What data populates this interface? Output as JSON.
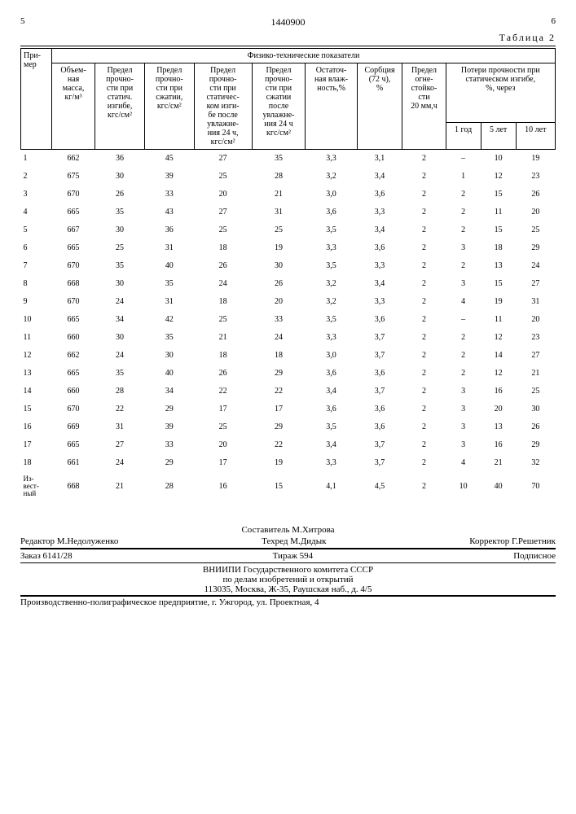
{
  "header": {
    "left_page": "5",
    "patent": "1440900",
    "right_page": "6",
    "table_label": "Таблица 2"
  },
  "table": {
    "col_example": "При-\nмер",
    "super_header": "Физико-технические показатели",
    "columns": {
      "c1": "Объем-\nная\nмасса,\nкг/м³",
      "c2": "Предел\nпрочно-\nсти при\nстатич.\nизгибе,\nкгс/см²",
      "c3": "Предел\nпрочно-\nсти при\nсжатии,\nкгс/см²",
      "c4": "Предел\nпрочно-\nсти при\nстатичес-\nком изги-\nбе после\nувлажне-\nния 24 ч,\nкгс/см²",
      "c5": "Предел\nпрочно-\nсти при\nсжатии\nпосле\nувлажне-\nния 24 ч\nкгс/см²",
      "c6": "Остаточ-\nная влаж-\nность,%",
      "c7": "Сорбция\n(72 ч),\n%",
      "c8": "Предел\nогне-\nстойко-\nсти\n20 мм,ч",
      "c9_group": "Потери прочности при\nстатическом изгибе,\n%, через",
      "c9a": "1 год",
      "c9b": "5 лет",
      "c9c": "10 лет"
    },
    "rows": [
      [
        "1",
        "662",
        "36",
        "45",
        "27",
        "35",
        "3,3",
        "3,1",
        "2",
        "–",
        "10",
        "19"
      ],
      [
        "2",
        "675",
        "30",
        "39",
        "25",
        "28",
        "3,2",
        "3,4",
        "2",
        "1",
        "12",
        "23"
      ],
      [
        "3",
        "670",
        "26",
        "33",
        "20",
        "21",
        "3,0",
        "3,6",
        "2",
        "2",
        "15",
        "26"
      ],
      [
        "4",
        "665",
        "35",
        "43",
        "27",
        "31",
        "3,6",
        "3,3",
        "2",
        "2",
        "11",
        "20"
      ],
      [
        "5",
        "667",
        "30",
        "36",
        "25",
        "25",
        "3,5",
        "3,4",
        "2",
        "2",
        "15",
        "25"
      ],
      [
        "6",
        "665",
        "25",
        "31",
        "18",
        "19",
        "3,3",
        "3,6",
        "2",
        "3",
        "18",
        "29"
      ],
      [
        "7",
        "670",
        "35",
        "40",
        "26",
        "30",
        "3,5",
        "3,3",
        "2",
        "2",
        "13",
        "24"
      ],
      [
        "8",
        "668",
        "30",
        "35",
        "24",
        "26",
        "3,2",
        "3,4",
        "2",
        "3",
        "15",
        "27"
      ],
      [
        "9",
        "670",
        "24",
        "31",
        "18",
        "20",
        "3,2",
        "3,3",
        "2",
        "4",
        "19",
        "31"
      ],
      [
        "10",
        "665",
        "34",
        "42",
        "25",
        "33",
        "3,5",
        "3,6",
        "2",
        "–",
        "11",
        "20"
      ],
      [
        "11",
        "660",
        "30",
        "35",
        "21",
        "24",
        "3,3",
        "3,7",
        "2",
        "2",
        "12",
        "23"
      ],
      [
        "12",
        "662",
        "24",
        "30",
        "18",
        "18",
        "3,0",
        "3,7",
        "2",
        "2",
        "14",
        "27"
      ],
      [
        "13",
        "665",
        "35",
        "40",
        "26",
        "29",
        "3,6",
        "3,6",
        "2",
        "2",
        "12",
        "21"
      ],
      [
        "14",
        "660",
        "28",
        "34",
        "22",
        "22",
        "3,4",
        "3,7",
        "2",
        "3",
        "16",
        "25"
      ],
      [
        "15",
        "670",
        "22",
        "29",
        "17",
        "17",
        "3,6",
        "3,6",
        "2",
        "3",
        "20",
        "30"
      ],
      [
        "16",
        "669",
        "31",
        "39",
        "25",
        "29",
        "3,5",
        "3,6",
        "2",
        "3",
        "13",
        "26"
      ],
      [
        "17",
        "665",
        "27",
        "33",
        "20",
        "22",
        "3,4",
        "3,7",
        "2",
        "3",
        "16",
        "29"
      ],
      [
        "18",
        "661",
        "24",
        "29",
        "17",
        "19",
        "3,3",
        "3,7",
        "2",
        "4",
        "21",
        "32"
      ],
      [
        "Из-\nвест-\nный",
        "668",
        "21",
        "28",
        "16",
        "15",
        "4,1",
        "4,5",
        "2",
        "10",
        "40",
        "70"
      ]
    ]
  },
  "footer": {
    "compiler": "Составитель М.Хитрова",
    "editor": "Редактор М.Недолуженко",
    "techred": "Техред М.Дидык",
    "corrector": "Корректор Г.Решетник",
    "order": "Заказ 6141/28",
    "tirage": "Тираж 594",
    "subscription": "Подписное",
    "org1": "ВНИИПИ Государственного комитета СССР",
    "org2": "по делам изобретений и открытий",
    "org3": "113035, Москва, Ж-35, Раушская наб., д. 4/5",
    "printer": "Производственно-полиграфическое предприятие, г. Ужгород, ул. Проектная, 4"
  }
}
